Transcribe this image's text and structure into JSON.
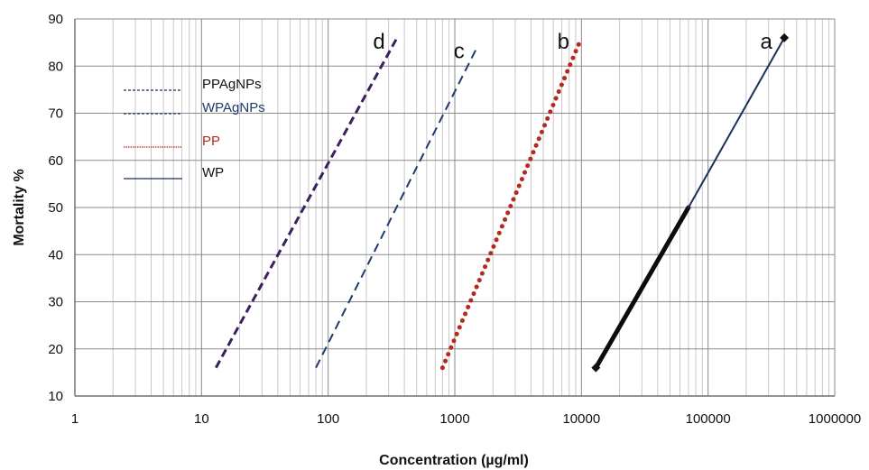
{
  "chart_data": {
    "type": "line",
    "xlabel": "Concentration (µg/ml)",
    "ylabel": "Mortality %",
    "xscale": "log",
    "xlim": [
      1,
      1000000
    ],
    "ylim": [
      10,
      90
    ],
    "grid": true,
    "x_tick_labels": [
      "1",
      "10",
      "100",
      "1000",
      "10000",
      "100000",
      "1000000"
    ],
    "x_ticks": [
      1,
      10,
      100,
      1000,
      10000,
      100000,
      1000000
    ],
    "y_ticks": [
      10,
      20,
      30,
      40,
      50,
      60,
      70,
      80,
      90
    ],
    "legend_position": "top-left",
    "series": [
      {
        "name": "PPAgNPs",
        "curve_label": "d",
        "color": "#3b1f5e",
        "style": "dashed",
        "width": 3,
        "x": [
          13,
          350
        ],
        "y": [
          16,
          86
        ]
      },
      {
        "name": "WPAgNPs",
        "curve_label": "c",
        "color": "#1f3a6b",
        "style": "dashed-thin",
        "width": 2,
        "x": [
          80,
          1500
        ],
        "y": [
          16,
          84
        ]
      },
      {
        "name": "PP",
        "curve_label": "b",
        "color": "#b52a1e",
        "style": "dotted",
        "width": 5,
        "x": [
          800,
          10000
        ],
        "y": [
          16,
          86
        ]
      },
      {
        "name": "WP",
        "curve_label": "a",
        "color": "#1a2f5c",
        "style": "solid",
        "width": 2,
        "x": [
          13000,
          70000,
          400000
        ],
        "y": [
          16,
          50,
          86
        ]
      }
    ]
  }
}
